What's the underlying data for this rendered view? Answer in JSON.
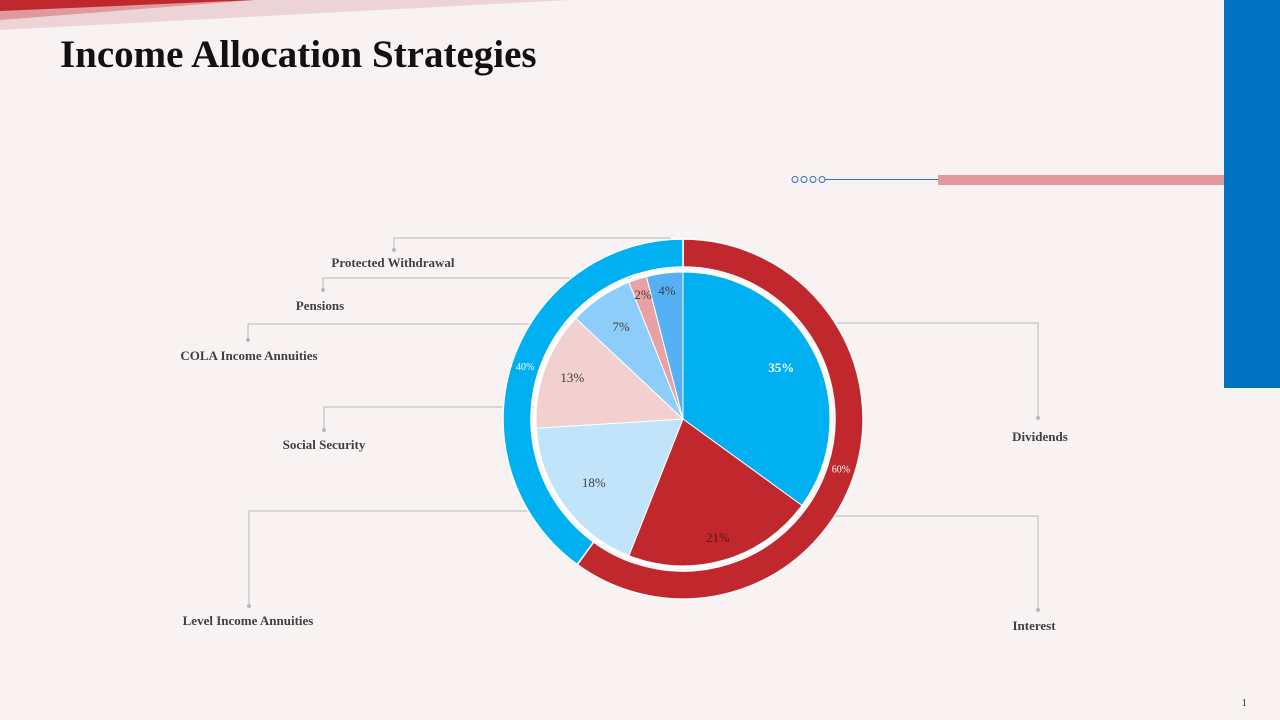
{
  "slide": {
    "title": "Income Allocation Strategies",
    "page_number": "1"
  },
  "colors": {
    "background": "#f9f2f2",
    "accent_blue": "#0070c0",
    "accent_red": "#c0282e",
    "accent_pink": "#e0999c",
    "outer_blue": "#00b0f0",
    "outer_red": "#c0282e"
  },
  "chart_data": {
    "type": "pie",
    "title": "",
    "inner": {
      "categories": [
        "Dividends",
        "Interest",
        "Level Income Annuities",
        "Social Security",
        "COLA Income Annuities",
        "Pensions",
        "Protected Withdrawal"
      ],
      "values": [
        35,
        21,
        18,
        13,
        7,
        2,
        4
      ],
      "labels": [
        "35%",
        "21%",
        "18%",
        "13%",
        "7%",
        "2%",
        "4%"
      ],
      "colors": [
        "#00b0f0",
        "#c0282e",
        "#c2e4fa",
        "#f2d0d0",
        "#8ecdfa",
        "#e8a2a6",
        "#55b0f4"
      ]
    },
    "outer": {
      "values": [
        60,
        40
      ],
      "labels": [
        "60%",
        "40%"
      ],
      "colors": [
        "#c0282e",
        "#00b0f0"
      ]
    }
  }
}
